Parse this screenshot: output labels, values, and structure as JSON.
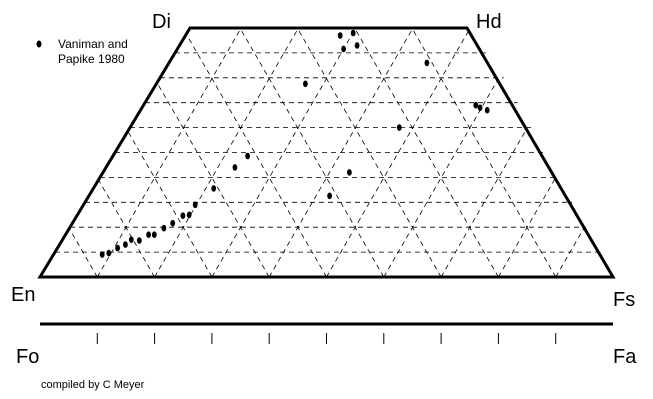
{
  "chart_data": {
    "type": "scatter",
    "diagram": "pyroxene-quadrilateral",
    "corners": {
      "top_left": "Di",
      "top_right": "Hd",
      "bottom_left": "En",
      "bottom_right": "Fs"
    },
    "olivine_axis": {
      "left": "Fo",
      "right": "Fa",
      "ticks": 10
    },
    "grid": true,
    "grid_divisions": 10,
    "legend": {
      "position": "top-left",
      "entries": [
        "Vaniman and Papike 1980"
      ]
    },
    "credit": "compiled by C Meyer",
    "series": [
      {
        "name": "Vaniman and Papike 1980",
        "marker": "filled-ellipse",
        "points": [
          {
            "fs": 8.5,
            "wo": 4.5
          },
          {
            "fs": 9.5,
            "wo": 4.8
          },
          {
            "fs": 10.5,
            "wo": 5.8
          },
          {
            "fs": 11.5,
            "wo": 6.5
          },
          {
            "fs": 12.0,
            "wo": 7.5
          },
          {
            "fs": 13.5,
            "wo": 7.3
          },
          {
            "fs": 14.5,
            "wo": 8.5
          },
          {
            "fs": 15.5,
            "wo": 8.5
          },
          {
            "fs": 16.5,
            "wo": 9.8
          },
          {
            "fs": 17.5,
            "wo": 10.8
          },
          {
            "fs": 18.5,
            "wo": 12.3
          },
          {
            "fs": 19.5,
            "wo": 12.5
          },
          {
            "fs": 19.5,
            "wo": 14.5
          },
          {
            "fs": 21.0,
            "wo": 17.8
          },
          {
            "fs": 22.5,
            "wo": 22.0
          },
          {
            "fs": 23.5,
            "wo": 24.3
          },
          {
            "fs": 26.0,
            "wo": 38.8
          },
          {
            "fs": 27.0,
            "wo": 48.5
          },
          {
            "fs": 29.0,
            "wo": 49.0
          },
          {
            "fs": 29.0,
            "wo": 45.8
          },
          {
            "fs": 31.0,
            "wo": 46.5
          },
          {
            "fs": 42.0,
            "wo": 16.3
          },
          {
            "fs": 43.0,
            "wo": 21.0
          },
          {
            "fs": 47.0,
            "wo": 30.0
          },
          {
            "fs": 45.0,
            "wo": 43.0
          },
          {
            "fs": 58.0,
            "wo": 34.5
          },
          {
            "fs": 59.0,
            "wo": 34.0
          },
          {
            "fs": 60.5,
            "wo": 33.5
          }
        ]
      }
    ]
  }
}
